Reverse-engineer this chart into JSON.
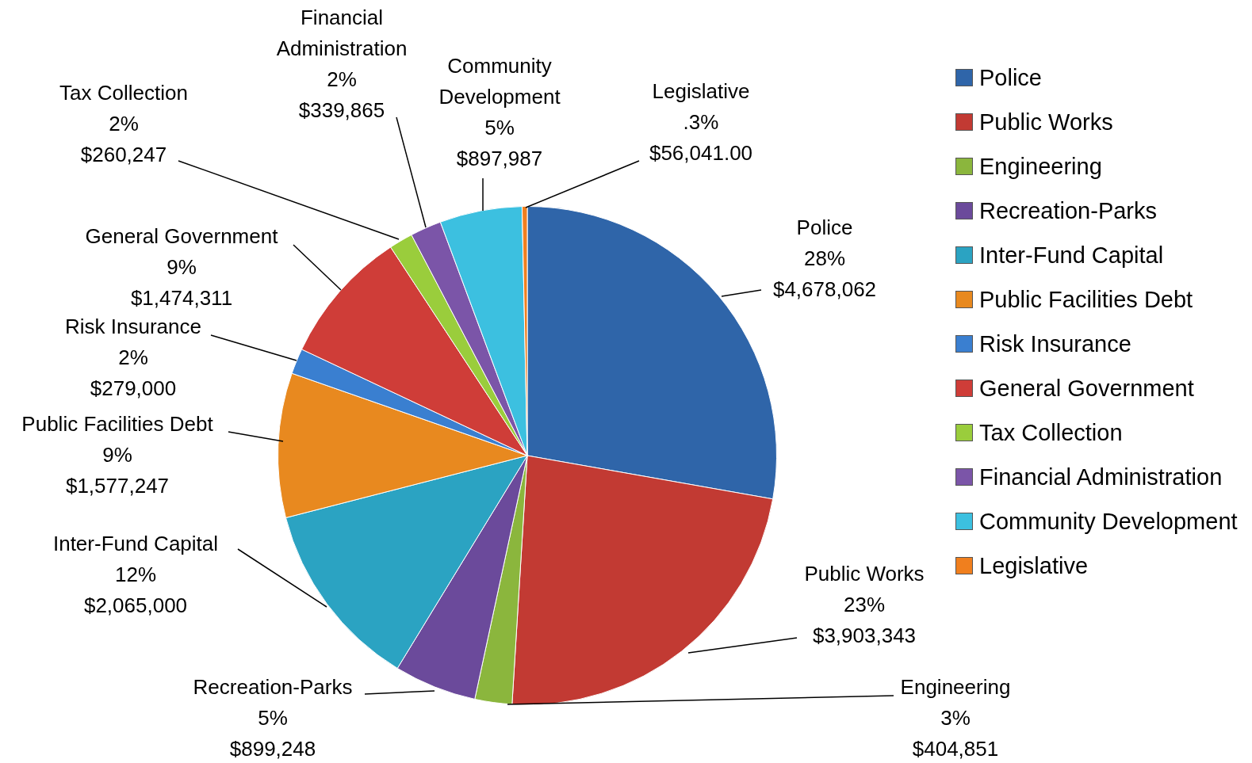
{
  "chart_data": {
    "type": "pie",
    "categories": [
      "Police",
      "Public Works",
      "Engineering",
      "Recreation-Parks",
      "Inter-Fund Capital",
      "Public Facilities Debt",
      "Risk Insurance",
      "General Government",
      "Tax Collection",
      "Financial Administration",
      "Community Development",
      "Legislative"
    ],
    "values": [
      4678062,
      3903343,
      404851,
      899248,
      2065000,
      1577247,
      279000,
      1474311,
      260247,
      339865,
      897987,
      56041.0
    ],
    "value_labels": [
      "28%\n$4,678,062",
      "23%\n$3,903,343",
      "3%\n$404,851",
      "5%\n$899,248",
      "12%\n$2,065,000",
      "9%\n$1,577,247",
      "2%\n$279,000",
      "9%\n$1,474,311",
      "2%\n$260,247",
      "2%\n$339,865",
      "5%\n$897,987",
      ".3%\n$56,041.00"
    ],
    "colors": [
      "#2f65a9",
      "#c23a33",
      "#8bb63d",
      "#6b4a9b",
      "#2ba3c2",
      "#e8891f",
      "#3a7fd0",
      "#cf3d38",
      "#9acd3c",
      "#7b55a8",
      "#3cc0e0",
      "#f07f1e"
    ],
    "legend": "right"
  }
}
